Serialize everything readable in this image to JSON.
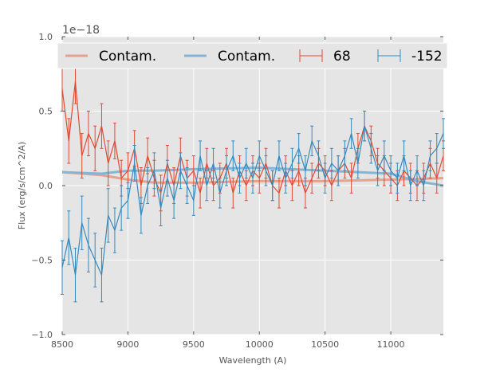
{
  "chart_data": {
    "type": "line",
    "xlabel": "Wavelength (A)",
    "ylabel": "Flux (erg/s/cm^2/A)",
    "offset_text": "1e−18",
    "xlim": [
      8500,
      11400
    ],
    "ylim": [
      -1.0,
      1.0
    ],
    "xticks": [
      8500,
      9000,
      9500,
      10000,
      10500,
      11000
    ],
    "xtick_labels": [
      "8500",
      "9000",
      "9500",
      "10000",
      "10500",
      "11000"
    ],
    "yticks": [
      -1.0,
      -0.5,
      0.0,
      0.5,
      1.0
    ],
    "ytick_labels": [
      "−1.0",
      "−0.5",
      "0.0",
      "0.5",
      "1.0"
    ],
    "grid": true,
    "legend_placement": "top",
    "colors": {
      "red": "#e24a33",
      "blue": "#348abd",
      "contam_red": "#e8a08f",
      "contam_blue": "#86b5d4",
      "axes_bg": "#e5e5e5",
      "grid": "#ffffff"
    },
    "legend": [
      {
        "label": "Contam.",
        "kind": "line",
        "color": "#e8a08f"
      },
      {
        "label": "Contam.",
        "kind": "line",
        "color": "#86b5d4"
      },
      {
        "label": "68",
        "kind": "errorbar",
        "color": "#e24a33"
      },
      {
        "label": "-152",
        "kind": "errorbar",
        "color": "#348abd"
      }
    ],
    "series": [
      {
        "name": "68",
        "kind": "errorbar",
        "color": "#e24a33",
        "x": [
          8500,
          8550,
          8600,
          8650,
          8700,
          8750,
          8800,
          8850,
          8900,
          8950,
          9000,
          9050,
          9100,
          9150,
          9200,
          9250,
          9300,
          9350,
          9400,
          9450,
          9500,
          9550,
          9600,
          9650,
          9700,
          9750,
          9800,
          9850,
          9900,
          9950,
          10000,
          10050,
          10100,
          10150,
          10200,
          10250,
          10300,
          10350,
          10400,
          10450,
          10500,
          10550,
          10600,
          10650,
          10700,
          10750,
          10800,
          10850,
          10900,
          10950,
          11000,
          11050,
          11100,
          11150,
          11200,
          11250,
          11300,
          11350,
          11400
        ],
        "y": [
          0.65,
          0.3,
          0.7,
          0.2,
          0.35,
          0.25,
          0.4,
          0.15,
          0.3,
          0.05,
          0.1,
          0.25,
          0.0,
          0.2,
          0.05,
          -0.05,
          0.15,
          0.0,
          0.2,
          0.05,
          0.1,
          -0.05,
          0.15,
          0.0,
          0.05,
          0.15,
          -0.05,
          0.1,
          0.0,
          0.1,
          0.05,
          0.15,
          0.0,
          -0.05,
          0.1,
          0.0,
          0.1,
          -0.05,
          0.05,
          0.15,
          0.1,
          0.0,
          0.1,
          0.15,
          0.05,
          0.25,
          0.4,
          0.3,
          0.15,
          0.1,
          0.05,
          0.0,
          0.1,
          0.05,
          0.0,
          0.05,
          0.15,
          0.05,
          0.2
        ],
        "err": [
          0.15,
          0.15,
          0.15,
          0.15,
          0.15,
          0.15,
          0.15,
          0.15,
          0.12,
          0.12,
          0.12,
          0.12,
          0.12,
          0.12,
          0.12,
          0.12,
          0.12,
          0.12,
          0.12,
          0.12,
          0.1,
          0.1,
          0.1,
          0.1,
          0.1,
          0.1,
          0.1,
          0.1,
          0.1,
          0.1,
          0.1,
          0.1,
          0.1,
          0.1,
          0.1,
          0.1,
          0.1,
          0.1,
          0.1,
          0.1,
          0.1,
          0.1,
          0.1,
          0.1,
          0.1,
          0.1,
          0.1,
          0.1,
          0.1,
          0.1,
          0.1,
          0.1,
          0.1,
          0.1,
          0.1,
          0.1,
          0.1,
          0.1,
          0.1
        ]
      },
      {
        "name": "-152",
        "kind": "errorbar",
        "color": "#348abd",
        "x": [
          8500,
          8550,
          8600,
          8650,
          8700,
          8750,
          8800,
          8850,
          8900,
          8950,
          9000,
          9050,
          9100,
          9150,
          9200,
          9250,
          9300,
          9350,
          9400,
          9450,
          9500,
          9550,
          9600,
          9650,
          9700,
          9750,
          9800,
          9850,
          9900,
          9950,
          10000,
          10050,
          10100,
          10150,
          10200,
          10250,
          10300,
          10350,
          10400,
          10450,
          10500,
          10550,
          10600,
          10650,
          10700,
          10750,
          10800,
          10850,
          10900,
          10950,
          11000,
          11050,
          11100,
          11150,
          11200,
          11250,
          11300,
          11350,
          11400
        ],
        "y": [
          -0.55,
          -0.35,
          -0.6,
          -0.25,
          -0.4,
          -0.5,
          -0.6,
          -0.2,
          -0.3,
          -0.15,
          -0.1,
          0.15,
          -0.2,
          0.0,
          0.1,
          -0.15,
          0.05,
          -0.1,
          0.1,
          0.0,
          -0.1,
          0.2,
          0.0,
          0.15,
          -0.05,
          0.1,
          0.2,
          0.05,
          0.15,
          0.05,
          0.2,
          0.1,
          0.0,
          0.2,
          0.05,
          0.15,
          0.25,
          0.1,
          0.3,
          0.2,
          0.05,
          0.15,
          0.1,
          0.2,
          0.35,
          0.15,
          0.4,
          0.25,
          0.1,
          0.2,
          0.1,
          0.05,
          0.2,
          0.0,
          0.1,
          0.0,
          0.2,
          0.25,
          0.35
        ],
        "err": [
          0.18,
          0.18,
          0.18,
          0.18,
          0.18,
          0.18,
          0.18,
          0.18,
          0.15,
          0.15,
          0.12,
          0.12,
          0.12,
          0.12,
          0.12,
          0.12,
          0.12,
          0.12,
          0.12,
          0.12,
          0.1,
          0.1,
          0.1,
          0.1,
          0.1,
          0.1,
          0.1,
          0.1,
          0.1,
          0.1,
          0.1,
          0.1,
          0.1,
          0.1,
          0.1,
          0.1,
          0.1,
          0.1,
          0.1,
          0.1,
          0.1,
          0.1,
          0.1,
          0.1,
          0.1,
          0.1,
          0.1,
          0.1,
          0.1,
          0.1,
          0.1,
          0.1,
          0.1,
          0.1,
          0.1,
          0.1,
          0.1,
          0.1,
          0.1
        ]
      },
      {
        "name": "Contam.",
        "kind": "line",
        "color": "#e8a08f",
        "x": [
          8500,
          8800,
          9000,
          9200,
          9500,
          10000,
          10500,
          11000,
          11400
        ],
        "y": [
          0.09,
          0.07,
          0.04,
          0.02,
          0.02,
          0.03,
          0.03,
          0.04,
          0.05
        ]
      },
      {
        "name": "Contam.",
        "kind": "line",
        "color": "#86b5d4",
        "x": [
          8500,
          8800,
          9000,
          9200,
          9500,
          10000,
          10500,
          11000,
          11200,
          11400
        ],
        "y": [
          0.09,
          0.08,
          0.1,
          0.1,
          0.11,
          0.12,
          0.1,
          0.08,
          0.03,
          0.0
        ]
      }
    ]
  }
}
